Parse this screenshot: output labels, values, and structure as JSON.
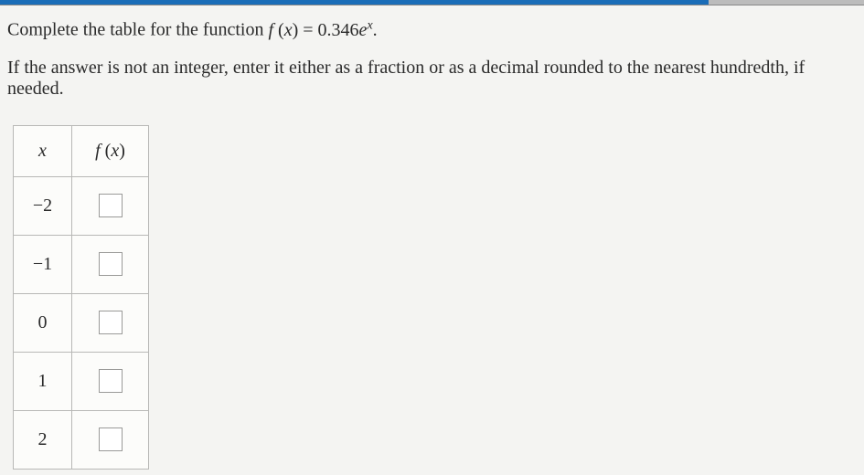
{
  "topbar": {
    "progress_color": "#1a6db8",
    "remainder_color": "#bcbcbc",
    "progress_pct": 82
  },
  "prompt": {
    "line1_pre": "Complete the table for the function ",
    "func_f": "f",
    "func_open": " (",
    "func_var": "x",
    "func_close": ")",
    "equals": " = ",
    "coeff": "0.346",
    "base": "e",
    "exp": "x",
    "period": ".",
    "line2": "If the answer is not an integer, enter it either as a fraction or as a decimal rounded to the nearest hundredth, if needed."
  },
  "table": {
    "header_x": "x",
    "header_f_f": "f",
    "header_f_open": " (",
    "header_f_var": "x",
    "header_f_close": ")",
    "rows": [
      {
        "x": "−2",
        "fx": ""
      },
      {
        "x": "−1",
        "fx": ""
      },
      {
        "x": "0",
        "fx": ""
      },
      {
        "x": "1",
        "fx": ""
      },
      {
        "x": "2",
        "fx": ""
      }
    ]
  }
}
